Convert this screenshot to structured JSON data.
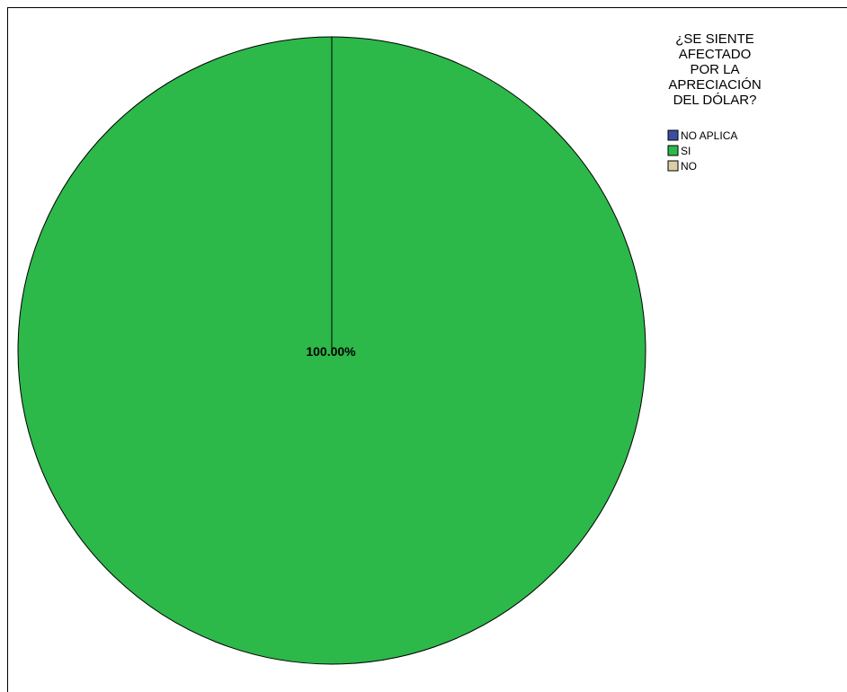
{
  "chart_data": {
    "type": "pie",
    "legend_title_lines": [
      "¿SE SIENTE",
      "AFECTADO",
      "POR LA",
      "APRECIACIÓN",
      "DEL DÓLAR?"
    ],
    "legend_position": "top-right",
    "slices": [
      {
        "label": "NO APLICA",
        "value": 0,
        "color": "#3a4fa3"
      },
      {
        "label": "SI",
        "value": 100,
        "color": "#2db84a"
      },
      {
        "label": "NO",
        "value": 0,
        "color": "#d9cfa3"
      }
    ],
    "data_labels": [
      "100.00%"
    ]
  }
}
